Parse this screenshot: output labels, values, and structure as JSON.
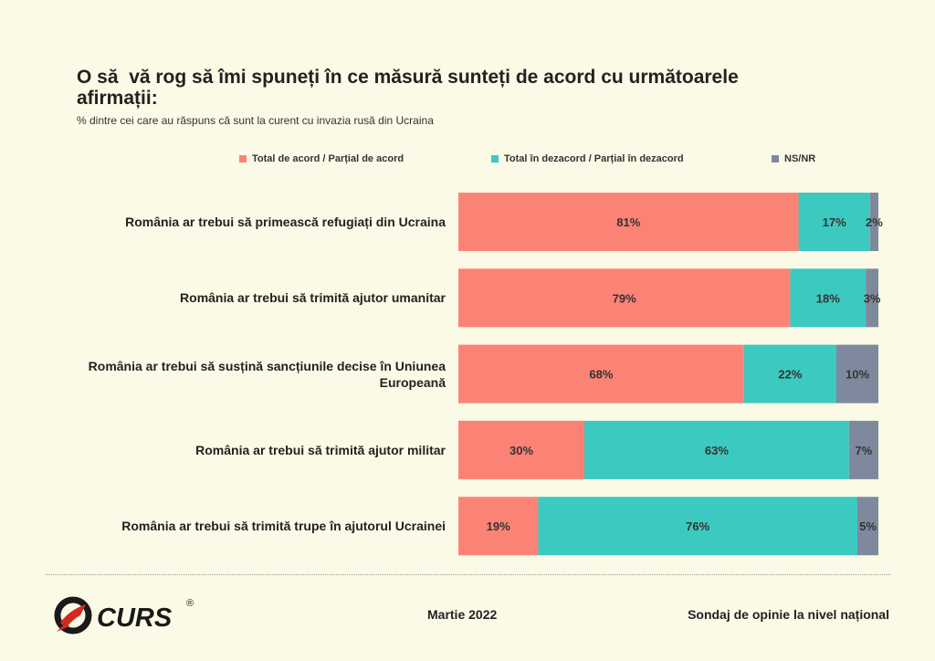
{
  "chart_data": {
    "type": "bar",
    "orientation": "horizontal",
    "stacked": true,
    "title": "O să  vă rog să îmi spuneți în ce măsură sunteți de acord cu următoarele\nafirmații:",
    "subtitle": "% dintre cei care au răspuns că sunt la curent cu invazia rusă din Ucraina",
    "categories": [
      "România ar trebui să primească refugiați din Ucraina",
      "România ar trebui să trimită ajutor umanitar",
      "România ar trebui să susțină sancțiunile decise în Uniunea Europeană",
      "România ar trebui să trimită ajutor militar",
      "România ar trebui să trimită trupe în ajutorul Ucrainei"
    ],
    "series": [
      {
        "name": "Total de acord / Parțial de acord",
        "values": [
          81,
          79,
          68,
          30,
          19
        ],
        "color": "#fb8376"
      },
      {
        "name": "Total în dezacord / Parțial în dezacord",
        "values": [
          17,
          18,
          22,
          63,
          76
        ],
        "color": "#3cc9c0"
      },
      {
        "name": "NS/NR",
        "values": [
          2,
          3,
          10,
          7,
          5
        ],
        "color": "#7f899e"
      }
    ],
    "data_labels": [
      [
        "81%",
        "17%",
        "2%"
      ],
      [
        "79%",
        "18%",
        "3%"
      ],
      [
        "68%",
        "22%",
        "10%"
      ],
      [
        "30%",
        "63%",
        "7%"
      ],
      [
        "19%",
        "76%",
        "5%"
      ]
    ],
    "legend_position": "top",
    "grid": false,
    "xlim": [
      0,
      100
    ]
  },
  "footer": {
    "logo_text": "CURS",
    "logo_mark": "®",
    "date": "Martie 2022",
    "source": "Sondaj de opinie la nivel național"
  }
}
